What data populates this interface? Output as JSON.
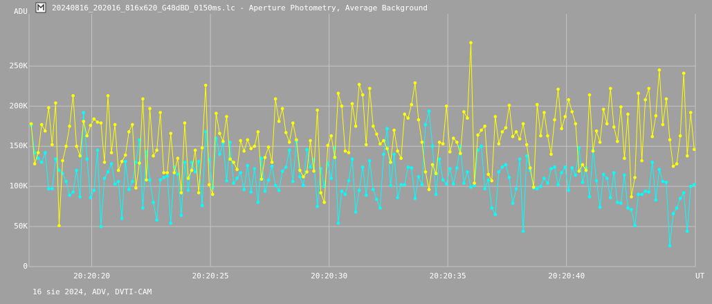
{
  "chart_data": {
    "type": "line",
    "title": "20240816_202016_816x620_G48dBD_0150ms.lc - Aperture Photometry, Average Background",
    "y_label": "ADU",
    "x_label": "UT",
    "footer": "16 sie 2024, ADV, DVTI-CAM",
    "xlim": [
      17.36,
      45.43
    ],
    "ylim": [
      0,
      315000
    ],
    "xticks": [
      {
        "value": 20,
        "label": "20:20:20"
      },
      {
        "value": 25,
        "label": "20:20:25"
      },
      {
        "value": 30,
        "label": "20:20:30"
      },
      {
        "value": 35,
        "label": "20:20:35"
      },
      {
        "value": 40,
        "label": "20:20:40"
      }
    ],
    "yticks": [
      0,
      {
        "value": 50000,
        "label": "50K"
      },
      {
        "value": 100000,
        "label": "100K"
      },
      {
        "value": 150000,
        "label": "150K"
      },
      {
        "value": 200000,
        "label": "200K"
      },
      {
        "value": 250000,
        "label": "250K"
      }
    ],
    "grid": true,
    "x": [
      17.45,
      17.597,
      17.744,
      17.891,
      18.038,
      18.185,
      18.332,
      18.479,
      18.626,
      18.773,
      18.92,
      19.067,
      19.214,
      19.361,
      19.508,
      19.655,
      19.802,
      19.949,
      20.096,
      20.243,
      20.39,
      20.537,
      20.684,
      20.831,
      20.978,
      21.125,
      21.272,
      21.419,
      21.566,
      21.713,
      21.86,
      22.007,
      22.154,
      22.301,
      22.448,
      22.595,
      22.742,
      22.889,
      23.036,
      23.183,
      23.33,
      23.477,
      23.624,
      23.771,
      23.918,
      24.065,
      24.212,
      24.359,
      24.506,
      24.653,
      24.8,
      24.947,
      25.094,
      25.241,
      25.388,
      25.535,
      25.682,
      25.829,
      25.976,
      26.123,
      26.27,
      26.417,
      26.564,
      26.711,
      26.858,
      27.005,
      27.152,
      27.299,
      27.446,
      27.593,
      27.74,
      27.887,
      28.034,
      28.181,
      28.328,
      28.475,
      28.622,
      28.769,
      28.916,
      29.063,
      29.21,
      29.357,
      29.504,
      29.651,
      29.798,
      29.945,
      30.092,
      30.239,
      30.386,
      30.533,
      30.68,
      30.827,
      30.974,
      31.121,
      31.268,
      31.415,
      31.562,
      31.709,
      31.856,
      32.003,
      32.15,
      32.297,
      32.444,
      32.591,
      32.738,
      32.885,
      33.032,
      33.179,
      33.326,
      33.473,
      33.62,
      33.767,
      33.914,
      34.061,
      34.208,
      34.355,
      34.502,
      34.649,
      34.796,
      34.943,
      35.09,
      35.237,
      35.384,
      35.531,
      35.678,
      35.825,
      35.972,
      36.119,
      36.266,
      36.413,
      36.56,
      36.707,
      36.854,
      37.001,
      37.148,
      37.295,
      37.442,
      37.589,
      37.736,
      37.883,
      38.03,
      38.177,
      38.324,
      38.471,
      38.618,
      38.765,
      38.912,
      39.059,
      39.206,
      39.353,
      39.5,
      39.647,
      39.794,
      39.941,
      40.088,
      40.235,
      40.382,
      40.529,
      40.676,
      40.823,
      40.97,
      41.117,
      41.264,
      41.411,
      41.558,
      41.705,
      41.852,
      41.999,
      42.146,
      42.293,
      42.44,
      42.587,
      42.734,
      42.881,
      43.028,
      43.175,
      43.322,
      43.469,
      43.616,
      43.763,
      43.91,
      44.057,
      44.204,
      44.351,
      44.498,
      44.645,
      44.792,
      44.939,
      45.086,
      45.233,
      45.38
    ],
    "series": [
      {
        "color": "#00ffff",
        "values": [
          176000,
          142000,
          135000,
          130000,
          142000,
          97000,
          97000,
          134000,
          120000,
          116000,
          106000,
          89000,
          93000,
          120000,
          87000,
          192000,
          134000,
          86000,
          95000,
          145000,
          50000,
          110000,
          118000,
          128000,
          103000,
          106000,
          60000,
          131000,
          96000,
          106000,
          130000,
          158000,
          73000,
          143000,
          108000,
          80000,
          58000,
          108000,
          111000,
          113000,
          54000,
          124000,
          115000,
          64000,
          130000,
          95000,
          130000,
          118000,
          131000,
          76000,
          168000,
          133000,
          98000,
          160000,
          140000,
          154000,
          107000,
          155000,
          104000,
          110000,
          117000,
          96000,
          126000,
          93000,
          122000,
          80000,
          135000,
          94000,
          108000,
          125000,
          101000,
          95000,
          119000,
          124000,
          145000,
          106000,
          156000,
          112000,
          101000,
          146000,
          124000,
          133000,
          75000,
          122000,
          100000,
          129000,
          110000,
          148000,
          54000,
          94000,
          90000,
          107000,
          134000,
          68000,
          95000,
          124000,
          89000,
          132000,
          96000,
          84000,
          73000,
          140000,
          172000,
          101000,
          140000,
          86000,
          102000,
          102000,
          124000,
          123000,
          85000,
          112000,
          102000,
          177000,
          194000,
          150000,
          90000,
          134000,
          108000,
          103000,
          122000,
          103000,
          123000,
          150000,
          104000,
          118000,
          99000,
          101000,
          145000,
          150000,
          97000,
          108000,
          73000,
          65000,
          118000,
          124000,
          127000,
          111000,
          79000,
          97000,
          134000,
          44000,
          138000,
          120000,
          98000,
          97000,
          100000,
          110000,
          104000,
          122000,
          124000,
          102000,
          117000,
          124000,
          95000,
          123000,
          114000,
          148000,
          105000,
          123000,
          87000,
          145000,
          107000,
          74000,
          115000,
          110000,
          86000,
          117000,
          80000,
          79000,
          114000,
          73000,
          71000,
          51000,
          90000,
          90000,
          94000,
          93000,
          130000,
          83000,
          121000,
          106000,
          105000,
          26000,
          66000,
          73000,
          85000,
          92000,
          44000,
          100000,
          102000
        ]
      },
      {
        "color": "#ffff00",
        "values": [
          178000,
          128000,
          142000,
          177000,
          169000,
          198000,
          152000,
          204000,
          51000,
          132000,
          150000,
          175000,
          213000,
          150000,
          138000,
          181000,
          163000,
          176000,
          184000,
          180000,
          179000,
          130000,
          213000,
          142000,
          177000,
          120000,
          131000,
          139000,
          168000,
          177000,
          98000,
          129000,
          209000,
          108000,
          197000,
          138000,
          145000,
          192000,
          117000,
          117000,
          166000,
          117000,
          135000,
          92000,
          179000,
          110000,
          120000,
          145000,
          92000,
          148000,
          226000,
          102000,
          90000,
          191000,
          166000,
          156000,
          187000,
          134000,
          130000,
          121000,
          157000,
          144000,
          158000,
          147000,
          150000,
          168000,
          109000,
          136000,
          149000,
          130000,
          209000,
          181000,
          197000,
          167000,
          155000,
          179000,
          158000,
          120000,
          112000,
          118000,
          157000,
          119000,
          195000,
          92000,
          80000,
          151000,
          163000,
          136000,
          216000,
          200000,
          144000,
          142000,
          203000,
          175000,
          227000,
          214000,
          152000,
          222000,
          175000,
          165000,
          153000,
          157000,
          147000,
          130000,
          170000,
          144000,
          135000,
          190000,
          185000,
          202000,
          229000,
          183000,
          155000,
          118000,
          96000,
          127000,
          116000,
          155000,
          153000,
          200000,
          143000,
          160000,
          155000,
          141000,
          193000,
          185000,
          279000,
          104000,
          164000,
          170000,
          175000,
          115000,
          107000,
          187000,
          153000,
          168000,
          173000,
          201000,
          162000,
          168000,
          159000,
          178000,
          152000,
          123000,
          99000,
          202000,
          163000,
          192000,
          163000,
          140000,
          183000,
          221000,
          172000,
          187000,
          208000,
          193000,
          178000,
          119000,
          127000,
          120000,
          214000,
          144000,
          169000,
          155000,
          196000,
          178000,
          222000,
          174000,
          156000,
          199000,
          135000,
          190000,
          87000,
          111000,
          216000,
          132000,
          208000,
          222000,
          162000,
          188000,
          245000,
          177000,
          209000,
          158000,
          125000,
          128000,
          163000,
          241000,
          138000,
          192000,
          146000
        ]
      }
    ]
  }
}
